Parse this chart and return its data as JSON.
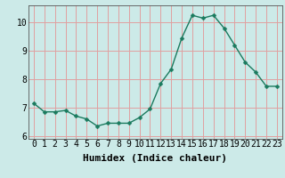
{
  "x": [
    0,
    1,
    2,
    3,
    4,
    5,
    6,
    7,
    8,
    9,
    10,
    11,
    12,
    13,
    14,
    15,
    16,
    17,
    18,
    19,
    20,
    21,
    22,
    23
  ],
  "y": [
    7.15,
    6.85,
    6.85,
    6.9,
    6.7,
    6.6,
    6.35,
    6.45,
    6.45,
    6.45,
    6.65,
    6.95,
    7.85,
    8.35,
    9.45,
    10.25,
    10.15,
    10.25,
    9.8,
    9.2,
    8.6,
    8.25,
    7.75,
    7.75
  ],
  "line_color": "#1a7a5e",
  "marker_color": "#1a7a5e",
  "bg_color": "#cceae8",
  "plot_bg_color": "#cceae8",
  "grid_color": "#e0a0a0",
  "xlabel": "Humidex (Indice chaleur)",
  "xlabel_fontsize": 8,
  "tick_fontsize": 7,
  "ylim": [
    5.9,
    10.6
  ],
  "yticks": [
    6,
    7,
    8,
    9,
    10
  ],
  "xlim": [
    -0.5,
    23.5
  ],
  "xticks": [
    0,
    1,
    2,
    3,
    4,
    5,
    6,
    7,
    8,
    9,
    10,
    11,
    12,
    13,
    14,
    15,
    16,
    17,
    18,
    19,
    20,
    21,
    22,
    23
  ],
  "xtick_labels": [
    "0",
    "1",
    "2",
    "3",
    "4",
    "5",
    "6",
    "7",
    "8",
    "9",
    "10",
    "11",
    "12",
    "13",
    "14",
    "15",
    "16",
    "17",
    "18",
    "19",
    "20",
    "21",
    "22",
    "23"
  ],
  "linewidth": 1.0,
  "markersize": 2.5
}
